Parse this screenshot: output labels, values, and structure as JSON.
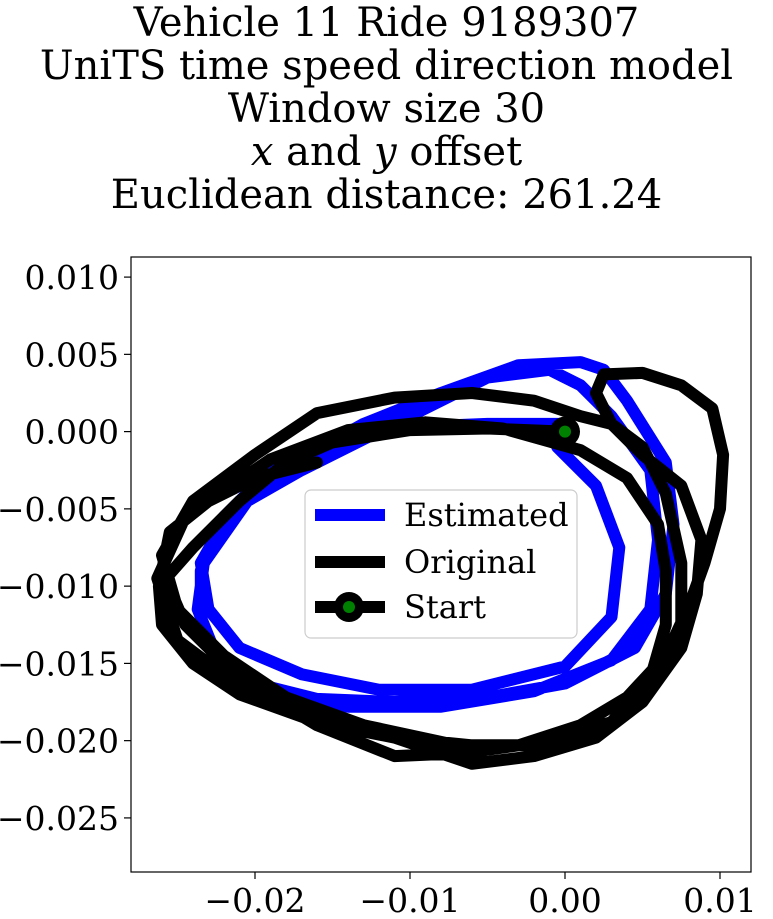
{
  "title": {
    "line1": "Vehicle 11 Ride 9189307",
    "line2": "UniTS time speed direction model",
    "line3": "Window size 30",
    "line4_x": "x",
    "line4_and": " and ",
    "line4_y": "y",
    "line4_rest": " offset",
    "line5": "Euclidean distance: 261.24"
  },
  "chart_data": {
    "type": "line",
    "xlim": [
      -0.028,
      0.012
    ],
    "ylim": [
      -0.0285,
      0.0113
    ],
    "x_ticks": [
      -0.02,
      -0.01,
      0.0,
      0.01
    ],
    "x_tick_labels": [
      "−0.02",
      "−0.01",
      "0.00",
      "0.01"
    ],
    "y_ticks": [
      0.01,
      0.005,
      0.0,
      -0.005,
      -0.01,
      -0.015,
      -0.02,
      -0.025
    ],
    "y_tick_labels": [
      "0.010",
      "0.005",
      "0.000",
      "−0.005",
      "−0.010",
      "−0.015",
      "−0.020",
      "−0.025"
    ],
    "grid": false,
    "legend": "center",
    "colors": {
      "estimated": "#0000ff",
      "original": "#000000",
      "start_marker": "#008000"
    },
    "series": [
      {
        "name": "Estimated",
        "x": [
          0,
          -0.005,
          -0.01,
          -0.015,
          -0.019,
          -0.022,
          -0.0235,
          -0.0235,
          -0.022,
          -0.019,
          -0.014,
          -0.008,
          -0.002,
          0.003,
          0.0055,
          0.006,
          0.0055,
          0.003,
          0.001,
          -0.001,
          -0.005,
          -0.009,
          -0.013,
          -0.017,
          -0.0205,
          -0.0233,
          -0.0237,
          -0.0225,
          -0.02,
          -0.016,
          -0.011,
          -0.005,
          0,
          0.0045,
          0.0065,
          0.007,
          0.0065,
          0.004,
          0.0025,
          0.001,
          -0.003,
          -0.008,
          -0.013,
          -0.0175,
          -0.0215,
          -0.0235,
          -0.023,
          -0.021,
          -0.017,
          -0.012,
          -0.006,
          0,
          0.003,
          0.0035,
          0.002,
          -0.0005
        ],
        "y": [
          0.0005,
          0.0005,
          0.0003,
          -0.0005,
          -0.0025,
          -0.0055,
          -0.009,
          -0.0125,
          -0.0155,
          -0.0172,
          -0.0178,
          -0.0178,
          -0.0168,
          -0.0148,
          -0.0115,
          -0.007,
          -0.0025,
          0.001,
          0.003,
          0.004,
          0.0035,
          0.0015,
          -0.0005,
          -0.0025,
          -0.0045,
          -0.0085,
          -0.0115,
          -0.0145,
          -0.0163,
          -0.0173,
          -0.0175,
          -0.0172,
          -0.0163,
          -0.014,
          -0.0105,
          -0.006,
          -0.002,
          0.002,
          0.004,
          0.0045,
          0.0043,
          0.0025,
          0.0005,
          -0.002,
          -0.005,
          -0.0085,
          -0.0115,
          -0.014,
          -0.0157,
          -0.0167,
          -0.0167,
          -0.0152,
          -0.012,
          -0.0075,
          -0.0035,
          -0.001
        ]
      },
      {
        "name": "Original",
        "x": [
          0,
          -0.005,
          -0.01,
          -0.015,
          -0.018,
          -0.021,
          -0.024,
          -0.0262,
          -0.026,
          -0.024,
          -0.021,
          -0.016,
          -0.011,
          -0.006,
          -0.001,
          0.003,
          0.006,
          0.0075,
          0.0075,
          0.0065,
          0.005,
          0.003,
          0.001,
          -0.002,
          -0.006,
          -0.011,
          -0.016,
          -0.02,
          -0.024,
          -0.026,
          -0.025,
          -0.022,
          -0.018,
          -0.013,
          -0.007,
          -0.002,
          0.003,
          0.0055,
          0.0065,
          0.0065,
          0.006,
          0.004,
          0.001,
          -0.004,
          -0.009,
          -0.014,
          -0.019,
          -0.0245,
          -0.0263,
          -0.025,
          -0.021,
          -0.016,
          -0.011,
          -0.006,
          -0.002,
          0.002,
          0.005,
          0.0075,
          0.0085,
          0.0088,
          0.0075,
          0.005,
          0.003,
          0.002,
          0.0025,
          0.005,
          0.0075,
          0.0095,
          0.0102,
          0.01,
          0.009,
          0.008,
          0.0065,
          0.004,
          0.001,
          -0.003,
          -0.0065,
          -0.011,
          -0.016,
          -0.021,
          -0.0245,
          -0.026,
          -0.0255,
          -0.023,
          -0.02,
          -0.016
        ],
        "y": [
          0,
          0.0002,
          0.0001,
          -0.0007,
          -0.002,
          -0.0045,
          -0.0075,
          -0.01,
          -0.0125,
          -0.015,
          -0.017,
          -0.0188,
          -0.0198,
          -0.0203,
          -0.0203,
          -0.0188,
          -0.016,
          -0.0125,
          -0.0085,
          -0.004,
          -0.001,
          0.0005,
          0.001,
          0.002,
          0.0025,
          0.0022,
          0.0012,
          -0.0015,
          -0.0045,
          -0.008,
          -0.0115,
          -0.0145,
          -0.0172,
          -0.019,
          -0.0203,
          -0.0203,
          -0.0188,
          -0.016,
          -0.0125,
          -0.009,
          -0.006,
          -0.003,
          -0.0012,
          0.0002,
          0.0006,
          0.0001,
          -0.0018,
          -0.0055,
          -0.0095,
          -0.0135,
          -0.0165,
          -0.0185,
          -0.0198,
          -0.0215,
          -0.021,
          -0.0198,
          -0.0175,
          -0.014,
          -0.0105,
          -0.007,
          -0.0035,
          -0.0015,
          0.0005,
          0.0025,
          0.0037,
          0.0038,
          0.003,
          0.0015,
          -0.0015,
          -0.005,
          -0.0085,
          -0.0113,
          -0.0145,
          -0.0172,
          -0.019,
          -0.0203,
          -0.0208,
          -0.021,
          -0.019,
          -0.016,
          -0.0125,
          -0.009,
          -0.0065,
          -0.0045,
          -0.003,
          -0.002
        ]
      },
      {
        "name": "Start",
        "x": [
          0
        ],
        "y": [
          0
        ]
      }
    ]
  }
}
